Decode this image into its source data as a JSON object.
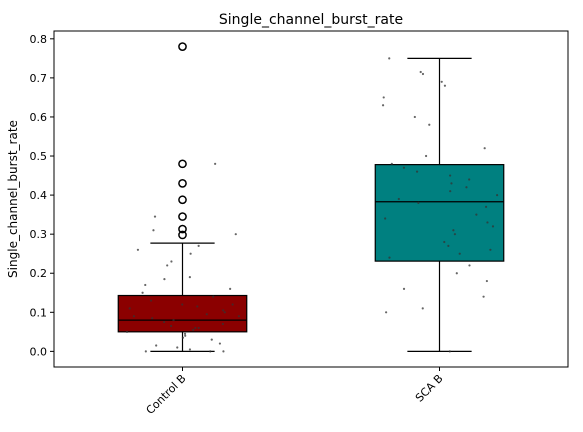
{
  "chart_data": {
    "type": "box",
    "title": "Single_channel_burst_rate",
    "xlabel": "",
    "ylabel": "Single_channel_burst_rate",
    "ylim": [
      -0.04,
      0.82
    ],
    "yticks": [
      "0.0",
      "0.1",
      "0.2",
      "0.3",
      "0.4",
      "0.5",
      "0.6",
      "0.7",
      "0.8"
    ],
    "grid": false,
    "legend": "none",
    "categories": [
      "Control B",
      "SCA B"
    ],
    "groups": [
      {
        "name": "Control B",
        "color": "#8b0000",
        "whisker_low": 0.0,
        "q1": 0.05,
        "median": 0.08,
        "q3": 0.143,
        "whisker_high": 0.277,
        "outliers": [
          0.78,
          0.48,
          0.43,
          0.388,
          0.345,
          0.313,
          0.298
        ],
        "points": [
          0.0,
          0.0,
          0.005,
          0.01,
          0.015,
          0.02,
          0.03,
          0.035,
          0.04,
          0.045,
          0.05,
          0.055,
          0.06,
          0.065,
          0.07,
          0.075,
          0.08,
          0.085,
          0.09,
          0.095,
          0.1,
          0.105,
          0.11,
          0.115,
          0.12,
          0.13,
          0.14,
          0.15,
          0.16,
          0.17,
          0.185,
          0.19,
          0.22,
          0.23,
          0.25,
          0.26,
          0.27,
          0.3,
          0.31,
          0.345,
          0.48,
          0.0,
          0.06,
          0.09,
          0.12
        ]
      },
      {
        "name": "SCA B",
        "color": "#008080",
        "whisker_low": 0.0,
        "q1": 0.231,
        "median": 0.383,
        "q3": 0.478,
        "whisker_high": 0.75,
        "outliers": [],
        "points": [
          0.0,
          0.1,
          0.11,
          0.14,
          0.16,
          0.18,
          0.2,
          0.22,
          0.24,
          0.25,
          0.26,
          0.27,
          0.28,
          0.3,
          0.31,
          0.32,
          0.33,
          0.34,
          0.35,
          0.37,
          0.38,
          0.39,
          0.4,
          0.41,
          0.42,
          0.43,
          0.44,
          0.45,
          0.46,
          0.47,
          0.48,
          0.5,
          0.52,
          0.58,
          0.6,
          0.63,
          0.65,
          0.68,
          0.69,
          0.71,
          0.715,
          0.75
        ]
      }
    ]
  }
}
